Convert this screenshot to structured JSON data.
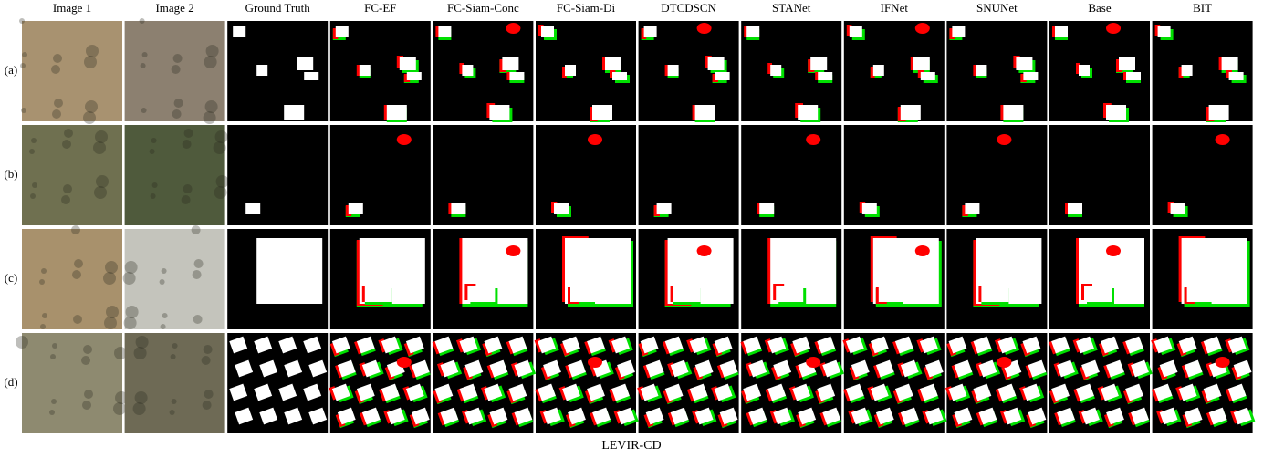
{
  "header": {
    "columns": [
      "Image 1",
      "Image 2",
      "Ground Truth",
      "FC-EF",
      "FC-Siam-Conc",
      "FC-Siam-Di",
      "DTCDSCN",
      "STANet",
      "IFNet",
      "SNUNet",
      "Base",
      "BIT"
    ]
  },
  "rows": [
    {
      "label": "(a)"
    },
    {
      "label": "(b)"
    },
    {
      "label": "(c)"
    },
    {
      "label": "(d)"
    }
  ],
  "caption": "LEVIR-CD"
}
